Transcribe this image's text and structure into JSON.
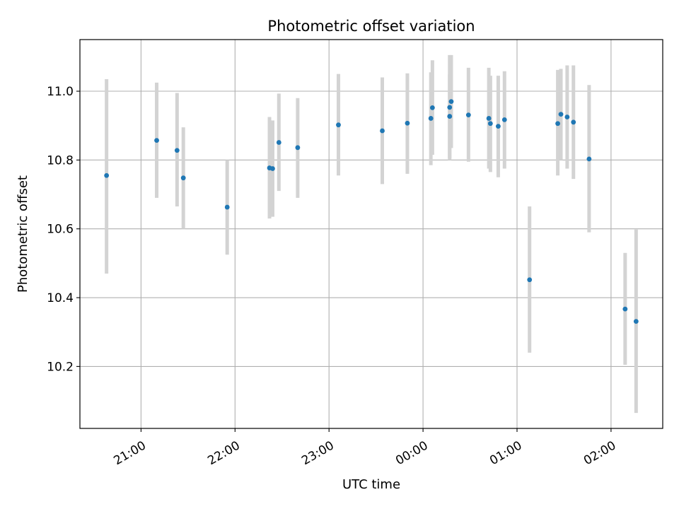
{
  "chart_data": {
    "type": "scatter",
    "title": "Photometric offset variation",
    "xlabel": "UTC time",
    "ylabel": "Photometric offset",
    "x_is_time": true,
    "xlim": [
      "20:21",
      "02:33"
    ],
    "ylim": [
      10.02,
      11.15
    ],
    "x_ticks": [
      "21:00",
      "22:00",
      "23:00",
      "00:00",
      "01:00",
      "02:00"
    ],
    "y_ticks": [
      "10.2",
      "10.4",
      "10.6",
      "10.8",
      "11.0"
    ],
    "grid": true,
    "marker_color": "#1f77b4",
    "errorbar_color": "#d3d3d3",
    "points": [
      {
        "t": "20:38",
        "y": 10.755,
        "lo": 10.47,
        "hi": 11.035
      },
      {
        "t": "21:10",
        "y": 10.857,
        "lo": 10.69,
        "hi": 11.025
      },
      {
        "t": "21:23",
        "y": 10.828,
        "lo": 10.665,
        "hi": 10.995
      },
      {
        "t": "21:27",
        "y": 10.748,
        "lo": 10.6,
        "hi": 10.895
      },
      {
        "t": "21:55",
        "y": 10.663,
        "lo": 10.525,
        "hi": 10.8
      },
      {
        "t": "22:22",
        "y": 10.777,
        "lo": 10.63,
        "hi": 10.925
      },
      {
        "t": "22:24",
        "y": 10.775,
        "lo": 10.635,
        "hi": 10.915
      },
      {
        "t": "22:28",
        "y": 10.851,
        "lo": 10.71,
        "hi": 10.993
      },
      {
        "t": "22:40",
        "y": 10.836,
        "lo": 10.69,
        "hi": 10.98
      },
      {
        "t": "23:06",
        "y": 10.902,
        "lo": 10.755,
        "hi": 11.05
      },
      {
        "t": "23:34",
        "y": 10.885,
        "lo": 10.73,
        "hi": 11.04
      },
      {
        "t": "23:50",
        "y": 10.907,
        "lo": 10.76,
        "hi": 11.052
      },
      {
        "t": "00:05",
        "y": 10.921,
        "lo": 10.785,
        "hi": 11.055
      },
      {
        "t": "00:06",
        "y": 10.952,
        "lo": 10.815,
        "hi": 11.09
      },
      {
        "t": "00:17",
        "y": 10.953,
        "lo": 10.8,
        "hi": 11.105
      },
      {
        "t": "00:17",
        "y": 10.927,
        "lo": 10.805,
        "hi": 11.05
      },
      {
        "t": "00:18",
        "y": 10.97,
        "lo": 10.835,
        "hi": 11.105
      },
      {
        "t": "00:29",
        "y": 10.931,
        "lo": 10.795,
        "hi": 11.068
      },
      {
        "t": "00:42",
        "y": 10.921,
        "lo": 10.775,
        "hi": 11.068
      },
      {
        "t": "00:43",
        "y": 10.906,
        "lo": 10.765,
        "hi": 11.045
      },
      {
        "t": "00:48",
        "y": 10.898,
        "lo": 10.75,
        "hi": 11.045
      },
      {
        "t": "00:52",
        "y": 10.917,
        "lo": 10.775,
        "hi": 11.058
      },
      {
        "t": "01:08",
        "y": 10.452,
        "lo": 10.24,
        "hi": 10.665
      },
      {
        "t": "01:26",
        "y": 10.906,
        "lo": 10.755,
        "hi": 11.062
      },
      {
        "t": "01:28",
        "y": 10.933,
        "lo": 10.8,
        "hi": 11.065
      },
      {
        "t": "01:32",
        "y": 10.925,
        "lo": 10.775,
        "hi": 11.075
      },
      {
        "t": "01:36",
        "y": 10.91,
        "lo": 10.745,
        "hi": 11.075
      },
      {
        "t": "01:46",
        "y": 10.803,
        "lo": 10.59,
        "hi": 11.018
      },
      {
        "t": "02:09",
        "y": 10.367,
        "lo": 10.205,
        "hi": 10.53
      },
      {
        "t": "02:16",
        "y": 10.331,
        "lo": 10.065,
        "hi": 10.598
      }
    ]
  }
}
